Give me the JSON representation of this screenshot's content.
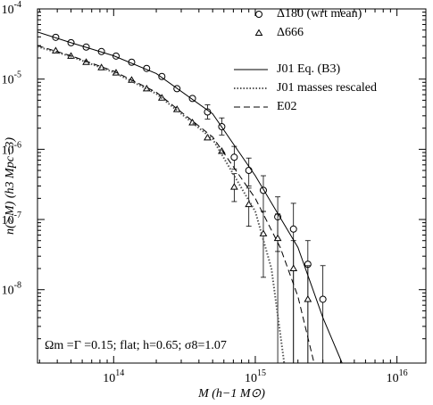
{
  "chart_data": {
    "type": "scatter",
    "xlabel": "M (h−1 M⊙)",
    "ylabel": "n(>M)  (h3 Mpc−3)",
    "annotation": "Ωm =Γ =0.15; flat; h=0.65; σ8=1.07",
    "xscale": "log",
    "yscale": "log",
    "xlim": [
      29000000000000.0,
      1.6e+16
    ],
    "ylim": [
      9e-10,
      0.0001
    ],
    "xticks": [
      {
        "value": 100000000000000.0,
        "label": "10",
        "exponent": "14"
      },
      {
        "value": 1000000000000000.0,
        "label": "10",
        "exponent": "15"
      },
      {
        "value": 1e+16,
        "label": "10",
        "exponent": "16"
      }
    ],
    "yticks": [
      {
        "value": 0.0001,
        "label": "10",
        "exponent": "-4"
      },
      {
        "value": 1e-05,
        "label": "10",
        "exponent": "-5"
      },
      {
        "value": 1e-06,
        "label": "10",
        "exponent": "-6"
      },
      {
        "value": 1e-07,
        "label": "10",
        "exponent": "-7"
      },
      {
        "value": 1e-08,
        "label": "10",
        "exponent": "-8"
      }
    ],
    "legend": "upper right",
    "series": [
      {
        "name": "Δ180  (wrt mean)",
        "marker": "circle",
        "color": "#000",
        "x": [
          39000000000000.0,
          50000000000000.0,
          64000000000000.0,
          82000000000000.0,
          104000000000000.0,
          134000000000000.0,
          171000000000000.0,
          219000000000000.0,
          280000000000000.0,
          360000000000000.0,
          460000000000000.0,
          580000000000000.0,
          710000000000000.0,
          900000000000000.0,
          1140000000000000.0,
          1440000000000000.0,
          1860000000000000.0,
          2350000000000000.0,
          3000000000000000.0
        ],
        "values": [
          3.94e-05,
          3.3e-05,
          2.86e-05,
          2.47e-05,
          2.13e-05,
          1.74e-05,
          1.42e-05,
          1.09e-05,
          7.3e-06,
          5.3e-06,
          3.4e-06,
          2.1e-06,
          7.7e-07,
          5e-07,
          2.6e-07,
          1.09e-07,
          7.3e-08,
          2.3e-08,
          7.3e-09
        ],
        "upper": [
          null,
          null,
          null,
          null,
          null,
          null,
          null,
          null,
          null,
          null,
          4.3e-06,
          2.8e-06,
          1.1e-06,
          7.5e-07,
          4.2e-07,
          2.1e-07,
          1.7e-07,
          5e-08,
          2.2e-08
        ],
        "lower": [
          null,
          null,
          null,
          null,
          null,
          null,
          null,
          null,
          null,
          null,
          2.7e-06,
          1.6e-06,
          5.2e-07,
          3e-07,
          1.3e-07,
          3.5e-08,
          9e-10,
          9e-10,
          9e-10
        ]
      },
      {
        "name": "Δ666",
        "marker": "triangle",
        "color": "#000",
        "x": [
          39000000000000.0,
          50000000000000.0,
          64000000000000.0,
          82000000000000.0,
          104000000000000.0,
          134000000000000.0,
          171000000000000.0,
          219000000000000.0,
          280000000000000.0,
          360000000000000.0,
          460000000000000.0,
          580000000000000.0,
          710000000000000.0,
          900000000000000.0,
          1140000000000000.0,
          1440000000000000.0,
          1860000000000000.0,
          2350000000000000.0
        ],
        "values": [
          2.54e-05,
          2.13e-05,
          1.74e-05,
          1.46e-05,
          1.23e-05,
          9.7e-06,
          7.3e-06,
          5.4e-06,
          3.7e-06,
          2.4e-06,
          1.46e-06,
          9.4e-07,
          2.9e-07,
          1.64e-07,
          6.3e-08,
          5.4e-08,
          2e-08,
          7.3e-09
        ],
        "upper": [
          null,
          null,
          null,
          null,
          null,
          null,
          null,
          null,
          null,
          null,
          null,
          null,
          4.5e-07,
          2.8e-07,
          1.3e-07,
          1.2e-07,
          5e-08,
          2.2e-08
        ],
        "lower": [
          null,
          null,
          null,
          null,
          null,
          null,
          null,
          null,
          null,
          null,
          null,
          null,
          1.8e-07,
          8e-08,
          1.5e-08,
          9e-10,
          9e-10,
          9e-10
        ]
      },
      {
        "name": "J01 Eq. (B3)",
        "style": "solid",
        "color": "#000",
        "x": [
          29000000000000.0,
          50000000000000.0,
          100000000000000.0,
          200000000000000.0,
          500000000000000.0,
          1000000000000000.0,
          2000000000000000.0,
          3000000000000000.0,
          4100000000000000.0
        ],
        "values": [
          4.7e-05,
          3.3e-05,
          2.15e-05,
          1.2e-05,
          3.2e-06,
          4.2e-07,
          4e-08,
          4e-09,
          9e-10
        ]
      },
      {
        "name": "J01 masses rescaled",
        "style": "dotted",
        "color": "#555",
        "x": [
          29000000000000.0,
          50000000000000.0,
          100000000000000.0,
          200000000000000.0,
          500000000000000.0,
          1000000000000000.0,
          1300000000000000.0,
          1600000000000000.0
        ],
        "values": [
          2.9e-05,
          2.1e-05,
          1.25e-05,
          6.2e-06,
          1.4e-06,
          1.3e-07,
          2e-08,
          9e-10
        ]
      },
      {
        "name": "E02",
        "style": "dashed",
        "color": "#000",
        "x": [
          29000000000000.0,
          50000000000000.0,
          100000000000000.0,
          200000000000000.0,
          500000000000000.0,
          1000000000000000.0,
          1500000000000000.0,
          2000000000000000.0,
          2600000000000000.0
        ],
        "values": [
          3e-05,
          2.15e-05,
          1.3e-05,
          6.5e-06,
          1.5e-06,
          2e-07,
          4e-08,
          8e-09,
          9e-10
        ]
      }
    ]
  }
}
